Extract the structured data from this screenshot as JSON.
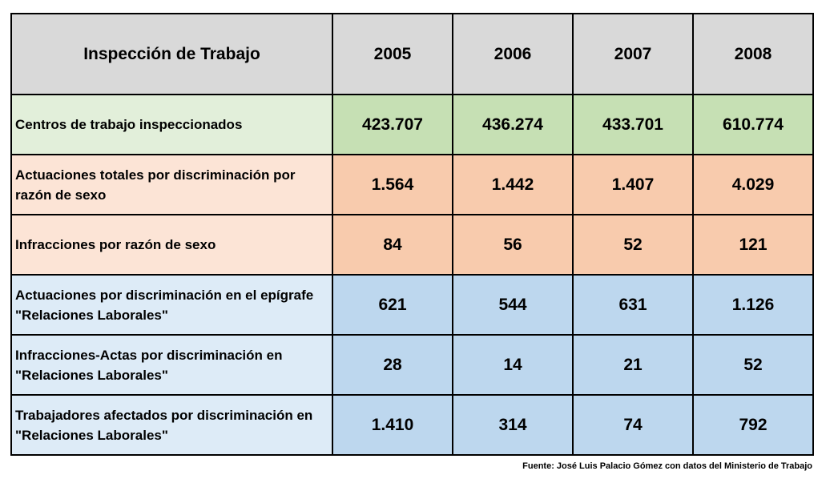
{
  "table": {
    "header": {
      "label": "Inspección de Trabajo",
      "years": [
        "2005",
        "2006",
        "2007",
        "2008"
      ],
      "background": "#d9d9d9"
    },
    "rows": [
      {
        "label": "Centros de trabajo inspeccionados",
        "values": [
          "423.707",
          "436.274",
          "433.701",
          "610.774"
        ],
        "label_bg": "#e2efda",
        "value_bg": "#c6e0b4"
      },
      {
        "label": "Actuaciones totales por discriminación por razón de sexo",
        "values": [
          "1.564",
          "1.442",
          "1.407",
          "4.029"
        ],
        "label_bg": "#fce4d6",
        "value_bg": "#f8cbad"
      },
      {
        "label": "Infracciones por razón de sexo",
        "values": [
          "84",
          "56",
          "52",
          "121"
        ],
        "label_bg": "#fce4d6",
        "value_bg": "#f8cbad"
      },
      {
        "label": "Actuaciones por discriminación en el epígrafe \"Relaciones Laborales\"",
        "values": [
          "621",
          "544",
          "631",
          "1.126"
        ],
        "label_bg": "#ddebf7",
        "value_bg": "#bdd7ee"
      },
      {
        "label": "Infracciones-Actas por discriminación en \"Relaciones Laborales\"",
        "values": [
          "28",
          "14",
          "21",
          "52"
        ],
        "label_bg": "#ddebf7",
        "value_bg": "#bdd7ee"
      },
      {
        "label": "Trabajadores afectados por discriminación en \"Relaciones Laborales\"",
        "values": [
          "1.410",
          "314",
          "74",
          "792"
        ],
        "label_bg": "#ddebf7",
        "value_bg": "#bdd7ee"
      }
    ]
  },
  "source": "Fuente: José Luis Palacio Gómez con datos del Ministerio de Trabajo"
}
